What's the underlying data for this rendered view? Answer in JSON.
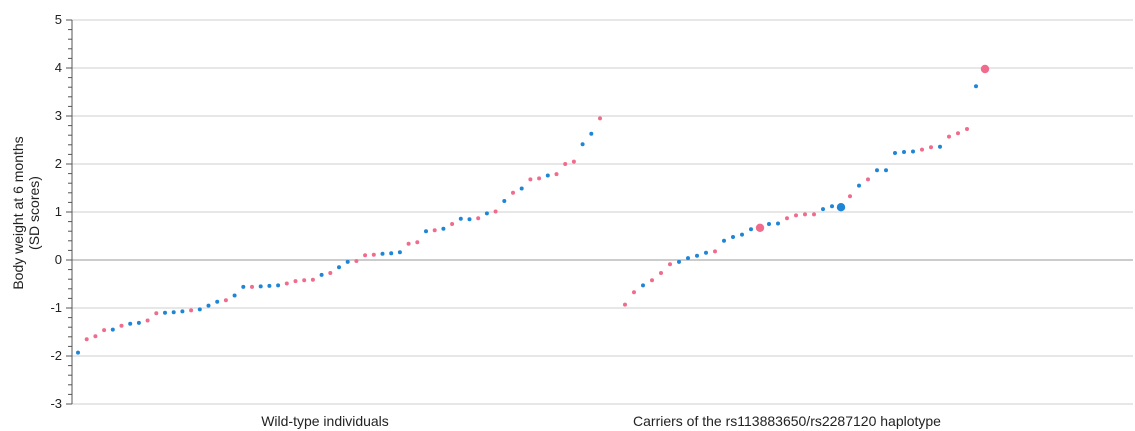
{
  "chart_data": {
    "type": "scatter",
    "ylabel_lines": [
      "Body weight at 6 months",
      "(SD scores)"
    ],
    "ylim": [
      -3,
      5
    ],
    "yticks": [
      "5",
      "4",
      "3",
      "2",
      "1",
      "0",
      "-1",
      "-2",
      "-3"
    ],
    "grid": true,
    "colors": {
      "pink": "#f06b8c",
      "blue": "#1f86d6"
    },
    "groups": [
      {
        "label": "Wild-type individuals",
        "points": [
          {
            "y": -1.93,
            "c": "blue"
          },
          {
            "y": -1.65,
            "c": "pink"
          },
          {
            "y": -1.59,
            "c": "pink"
          },
          {
            "y": -1.46,
            "c": "pink"
          },
          {
            "y": -1.45,
            "c": "blue"
          },
          {
            "y": -1.37,
            "c": "pink"
          },
          {
            "y": -1.33,
            "c": "blue"
          },
          {
            "y": -1.31,
            "c": "blue"
          },
          {
            "y": -1.26,
            "c": "pink"
          },
          {
            "y": -1.11,
            "c": "pink"
          },
          {
            "y": -1.1,
            "c": "blue"
          },
          {
            "y": -1.09,
            "c": "blue"
          },
          {
            "y": -1.07,
            "c": "blue"
          },
          {
            "y": -1.05,
            "c": "pink"
          },
          {
            "y": -1.03,
            "c": "blue"
          },
          {
            "y": -0.95,
            "c": "blue"
          },
          {
            "y": -0.87,
            "c": "blue"
          },
          {
            "y": -0.84,
            "c": "pink"
          },
          {
            "y": -0.74,
            "c": "blue"
          },
          {
            "y": -0.56,
            "c": "blue"
          },
          {
            "y": -0.56,
            "c": "pink"
          },
          {
            "y": -0.55,
            "c": "blue"
          },
          {
            "y": -0.54,
            "c": "blue"
          },
          {
            "y": -0.53,
            "c": "blue"
          },
          {
            "y": -0.49,
            "c": "pink"
          },
          {
            "y": -0.44,
            "c": "pink"
          },
          {
            "y": -0.42,
            "c": "pink"
          },
          {
            "y": -0.41,
            "c": "pink"
          },
          {
            "y": -0.31,
            "c": "blue"
          },
          {
            "y": -0.27,
            "c": "pink"
          },
          {
            "y": -0.15,
            "c": "blue"
          },
          {
            "y": -0.04,
            "c": "blue"
          },
          {
            "y": -0.02,
            "c": "pink"
          },
          {
            "y": 0.1,
            "c": "pink"
          },
          {
            "y": 0.11,
            "c": "pink"
          },
          {
            "y": 0.13,
            "c": "blue"
          },
          {
            "y": 0.14,
            "c": "blue"
          },
          {
            "y": 0.16,
            "c": "blue"
          },
          {
            "y": 0.34,
            "c": "pink"
          },
          {
            "y": 0.37,
            "c": "pink"
          },
          {
            "y": 0.6,
            "c": "blue"
          },
          {
            "y": 0.62,
            "c": "pink"
          },
          {
            "y": 0.65,
            "c": "blue"
          },
          {
            "y": 0.75,
            "c": "pink"
          },
          {
            "y": 0.86,
            "c": "blue"
          },
          {
            "y": 0.85,
            "c": "blue"
          },
          {
            "y": 0.87,
            "c": "pink"
          },
          {
            "y": 0.97,
            "c": "blue"
          },
          {
            "y": 1.01,
            "c": "pink"
          },
          {
            "y": 1.23,
            "c": "blue"
          },
          {
            "y": 1.4,
            "c": "pink"
          },
          {
            "y": 1.49,
            "c": "blue"
          },
          {
            "y": 1.68,
            "c": "pink"
          },
          {
            "y": 1.7,
            "c": "pink"
          },
          {
            "y": 1.76,
            "c": "blue"
          },
          {
            "y": 1.79,
            "c": "pink"
          },
          {
            "y": 2.0,
            "c": "pink"
          },
          {
            "y": 2.05,
            "c": "pink"
          },
          {
            "y": 2.41,
            "c": "blue"
          },
          {
            "y": 2.63,
            "c": "blue"
          },
          {
            "y": 2.95,
            "c": "pink"
          }
        ]
      },
      {
        "label": "Carriers of the rs113883650/rs2287120 haplotype",
        "points": [
          {
            "y": -0.93,
            "c": "pink"
          },
          {
            "y": -0.67,
            "c": "pink"
          },
          {
            "y": -0.53,
            "c": "blue"
          },
          {
            "y": -0.42,
            "c": "pink"
          },
          {
            "y": -0.27,
            "c": "pink"
          },
          {
            "y": -0.09,
            "c": "pink"
          },
          {
            "y": -0.04,
            "c": "blue"
          },
          {
            "y": 0.04,
            "c": "blue"
          },
          {
            "y": 0.09,
            "c": "blue"
          },
          {
            "y": 0.15,
            "c": "blue"
          },
          {
            "y": 0.18,
            "c": "pink"
          },
          {
            "y": 0.4,
            "c": "blue"
          },
          {
            "y": 0.48,
            "c": "blue"
          },
          {
            "y": 0.53,
            "c": "blue"
          },
          {
            "y": 0.64,
            "c": "blue"
          },
          {
            "y": 0.67,
            "c": "pink",
            "large": true
          },
          {
            "y": 0.75,
            "c": "blue"
          },
          {
            "y": 0.76,
            "c": "blue"
          },
          {
            "y": 0.87,
            "c": "pink"
          },
          {
            "y": 0.93,
            "c": "pink"
          },
          {
            "y": 0.95,
            "c": "pink"
          },
          {
            "y": 0.95,
            "c": "pink"
          },
          {
            "y": 1.06,
            "c": "blue"
          },
          {
            "y": 1.12,
            "c": "blue"
          },
          {
            "y": 1.1,
            "c": "blue",
            "large": true
          },
          {
            "y": 1.33,
            "c": "pink"
          },
          {
            "y": 1.55,
            "c": "blue"
          },
          {
            "y": 1.68,
            "c": "pink"
          },
          {
            "y": 1.87,
            "c": "blue"
          },
          {
            "y": 1.87,
            "c": "blue"
          },
          {
            "y": 2.23,
            "c": "blue"
          },
          {
            "y": 2.25,
            "c": "blue"
          },
          {
            "y": 2.26,
            "c": "blue"
          },
          {
            "y": 2.3,
            "c": "pink"
          },
          {
            "y": 2.35,
            "c": "pink"
          },
          {
            "y": 2.36,
            "c": "blue"
          },
          {
            "y": 2.57,
            "c": "pink"
          },
          {
            "y": 2.64,
            "c": "pink"
          },
          {
            "y": 2.73,
            "c": "pink"
          },
          {
            "y": 3.62,
            "c": "blue"
          },
          {
            "y": 3.98,
            "c": "pink",
            "large": true
          }
        ]
      }
    ]
  }
}
